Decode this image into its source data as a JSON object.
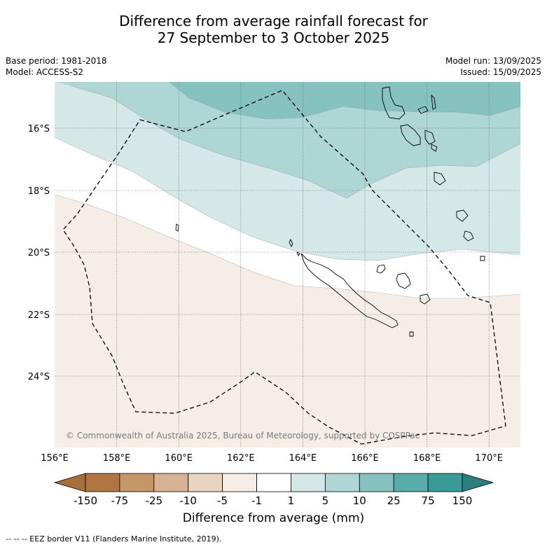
{
  "title": {
    "line1": "Difference from average rainfall forecast for",
    "line2": "27 September to 3 October 2025"
  },
  "meta": {
    "base_period": "Base period: 1981-2018",
    "model": "Model: ACCESS-S2",
    "model_run": "Model run: 13/09/2025",
    "issued": "Issued: 15/09/2025"
  },
  "map": {
    "lon_labels": [
      "156°E",
      "158°E",
      "160°E",
      "162°E",
      "164°E",
      "166°E",
      "168°E",
      "170°E"
    ],
    "lat_labels": [
      "16°S",
      "18°S",
      "20°S",
      "22°S",
      "24°S"
    ],
    "copyright": "© Commonwealth of Australia 2025, Bureau of Meteorology, supported by COSPPac"
  },
  "colorbar": {
    "labels": [
      "-150",
      "-75",
      "-25",
      "-10",
      "-5",
      "-1",
      "1",
      "5",
      "10",
      "25",
      "75",
      "150"
    ],
    "colors": [
      "#a86f3a",
      "#b07642",
      "#c49668",
      "#d6b392",
      "#e8d4c1",
      "#f5ede6",
      "#ffffff",
      "#d4e9e7",
      "#aed6d5",
      "#86c2c0",
      "#5aacab",
      "#3a9a97",
      "#2b7f7c"
    ],
    "title": "Difference from average (mm)"
  },
  "legend": {
    "eez": "--  --  -- EEZ border V11 (Flanders Marine Institute, 2019)."
  }
}
